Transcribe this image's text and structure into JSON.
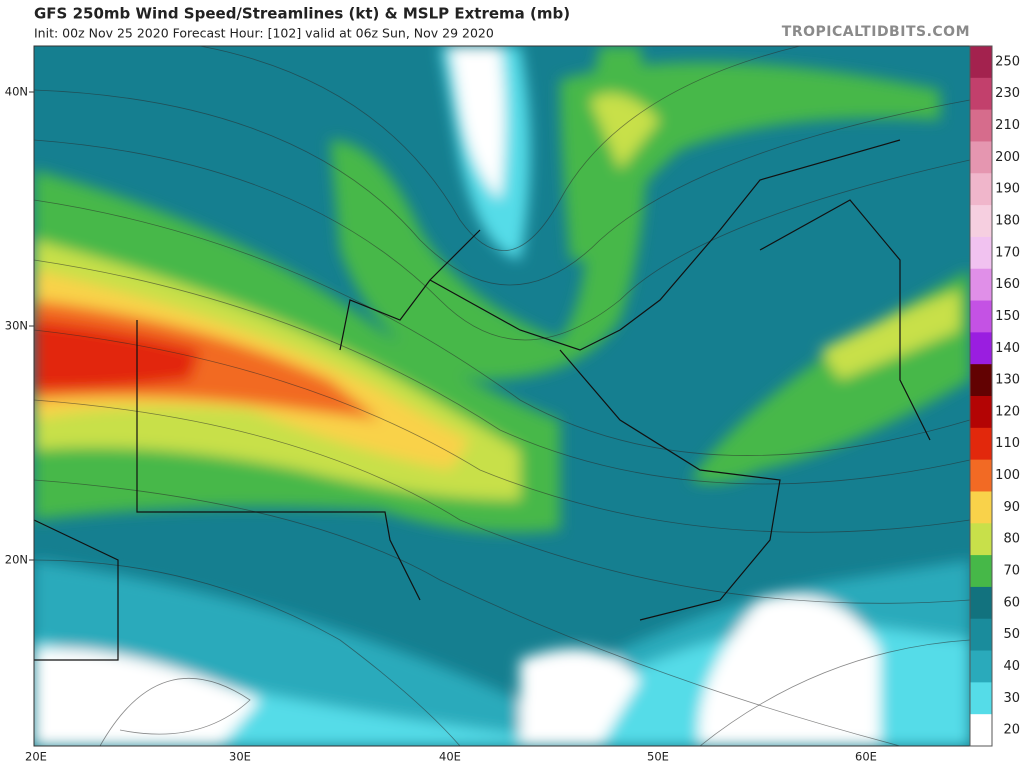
{
  "header": {
    "title": "GFS 250mb Wind Speed/Streamlines (kt) & MSLP Extrema (mb)",
    "subtitle": "Init: 00z Nov 25 2020   Forecast Hour: [102]   valid at 06z Sun, Nov 29 2020"
  },
  "watermark": "TROPICALTIDBITS.COM",
  "map": {
    "lat_labels": [
      "40N",
      "30N",
      "20N"
    ],
    "lon_labels": [
      "20E",
      "30E",
      "40E",
      "50E",
      "60E"
    ]
  },
  "colorbar": {
    "levels": [
      {
        "value": 250,
        "color": "#a3224e"
      },
      {
        "value": 230,
        "color": "#c2406c"
      },
      {
        "value": 210,
        "color": "#d66c8c"
      },
      {
        "value": 200,
        "color": "#e596b0"
      },
      {
        "value": 190,
        "color": "#f0b6cb"
      },
      {
        "value": 180,
        "color": "#f6cfe0"
      },
      {
        "value": 170,
        "color": "#f1c2f0"
      },
      {
        "value": 160,
        "color": "#e08fe8"
      },
      {
        "value": 150,
        "color": "#c452e4"
      },
      {
        "value": 140,
        "color": "#9a1ee0"
      },
      {
        "value": 130,
        "color": "#620202"
      },
      {
        "value": 120,
        "color": "#b30404"
      },
      {
        "value": 110,
        "color": "#e2280c"
      },
      {
        "value": 100,
        "color": "#f26a24"
      },
      {
        "value": 90,
        "color": "#f9d24a"
      },
      {
        "value": 80,
        "color": "#c8e04a"
      },
      {
        "value": 70,
        "color": "#46b848"
      },
      {
        "value": 60,
        "color": "#12727e"
      },
      {
        "value": 50,
        "color": "#1a8c9c"
      },
      {
        "value": 40,
        "color": "#2aaabb"
      },
      {
        "value": 30,
        "color": "#55dce8"
      },
      {
        "value": 20,
        "color": "#ffffff"
      }
    ]
  }
}
